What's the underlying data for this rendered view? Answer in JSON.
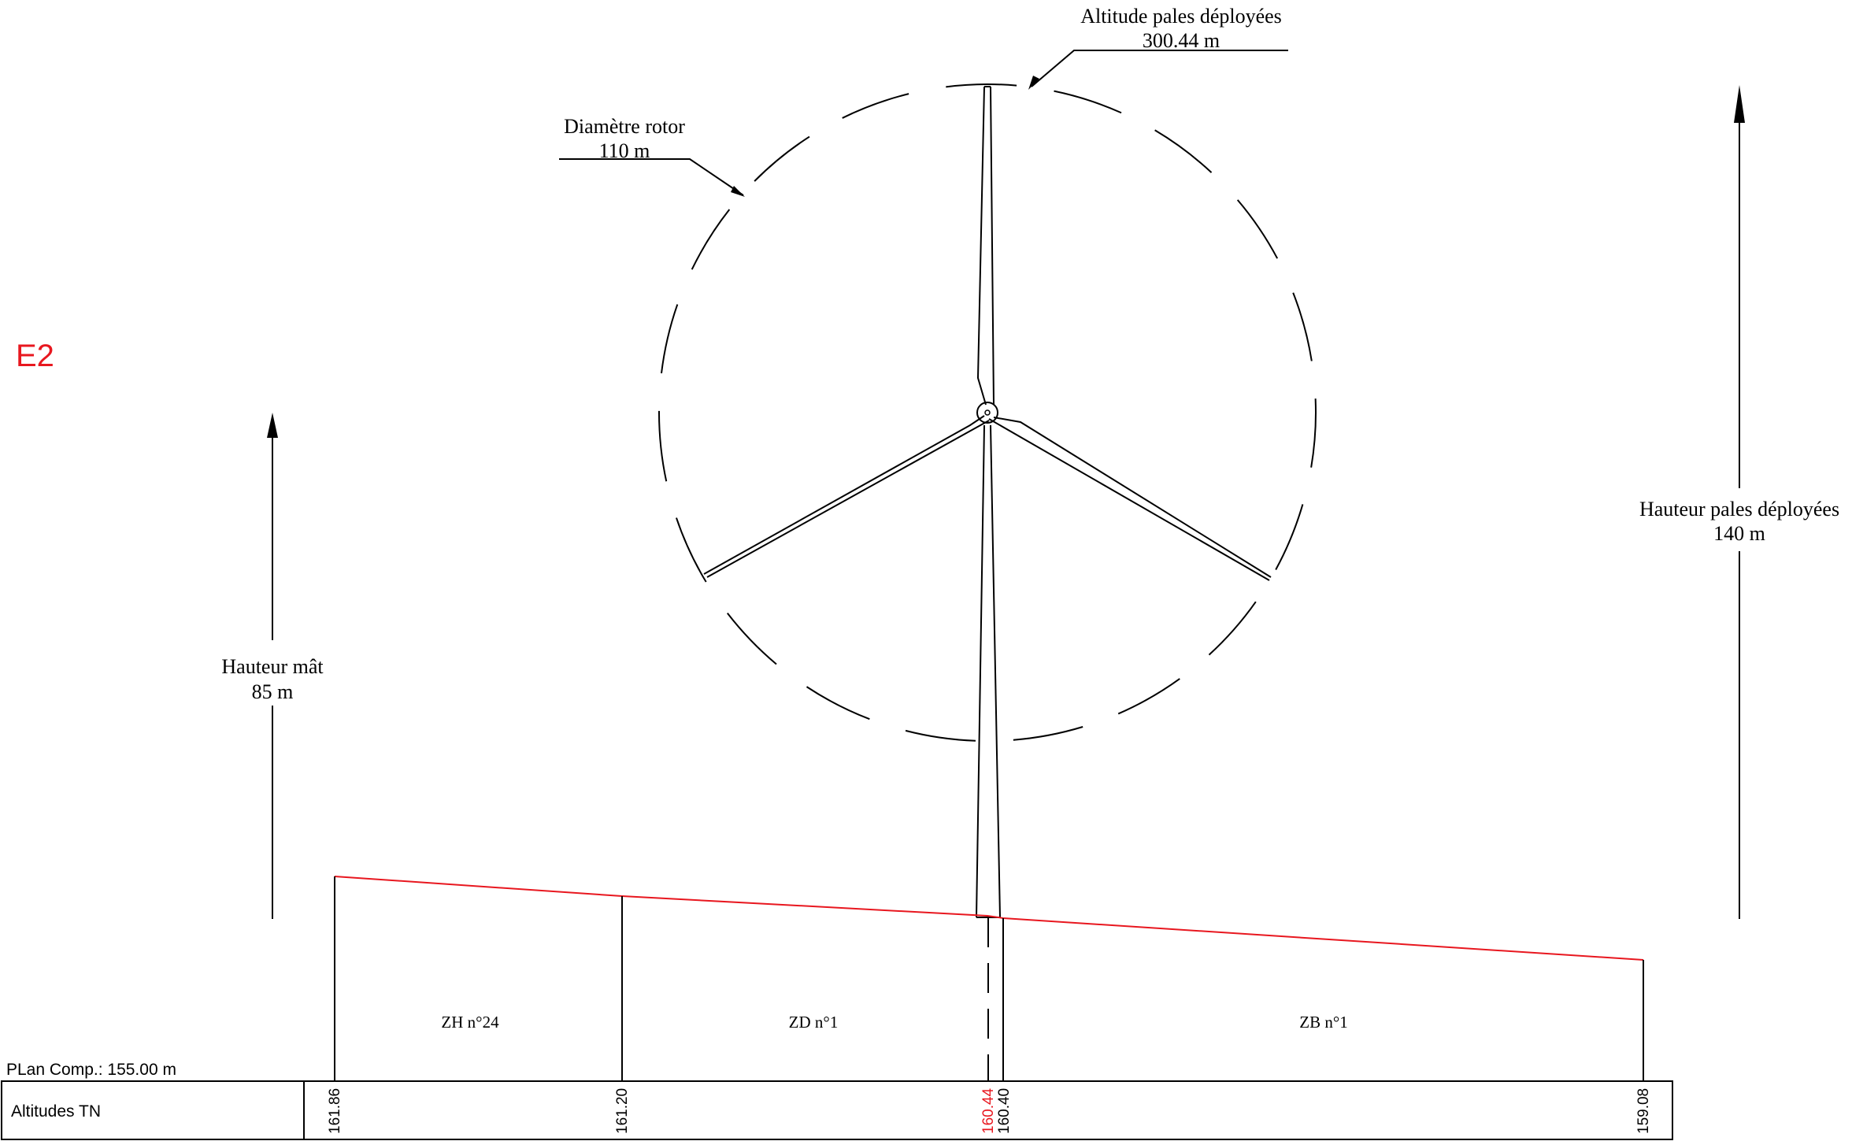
{
  "site_label": "E2",
  "annotations": {
    "altitude_blades": {
      "label": "Altitude pales déployées",
      "value": "300.44 m"
    },
    "rotor_diameter": {
      "label": "Diamètre rotor",
      "value": "110 m"
    },
    "mast_height": {
      "label": "Hauteur mât",
      "value": "85 m"
    },
    "blades_height": {
      "label": "Hauteur pales déployées",
      "value": "140 m"
    }
  },
  "parcels": [
    "ZH n°24",
    "ZD n°1",
    "ZB n°1"
  ],
  "reference_plane": "PLan Comp.: 155.00 m",
  "altitudes_row_label": "Altitudes TN",
  "altitudes": [
    "161.86",
    "161.20",
    "160.44",
    "160.40",
    "159.08"
  ],
  "colors": {
    "terrain": "#e8171f",
    "site_label": "#e8171f",
    "highlight_altitude": "#e8171f",
    "lines": "#000000"
  }
}
